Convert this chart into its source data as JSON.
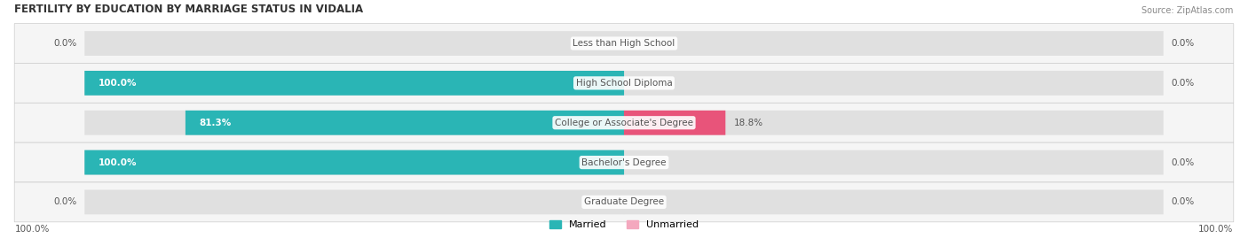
{
  "title": "FERTILITY BY EDUCATION BY MARRIAGE STATUS IN VIDALIA",
  "source": "Source: ZipAtlas.com",
  "categories": [
    "Less than High School",
    "High School Diploma",
    "College or Associate's Degree",
    "Bachelor's Degree",
    "Graduate Degree"
  ],
  "married_values": [
    0.0,
    100.0,
    81.3,
    100.0,
    0.0
  ],
  "unmarried_values": [
    0.0,
    0.0,
    18.8,
    0.0,
    0.0
  ],
  "married_color_full": "#2ab5b5",
  "married_color_light": "#7dd4d4",
  "unmarried_color_full": "#e8547a",
  "unmarried_color_light": "#f4a8be",
  "bar_bg_color": "#e0e0e0",
  "row_bg_color": "#f5f5f5",
  "text_color_white": "#ffffff",
  "text_color_dark": "#555555",
  "x_left_label": "100.0%",
  "x_right_label": "100.0%",
  "legend_married": "Married",
  "legend_unmarried": "Unmarried",
  "figsize": [
    14.06,
    2.69
  ],
  "dpi": 100
}
